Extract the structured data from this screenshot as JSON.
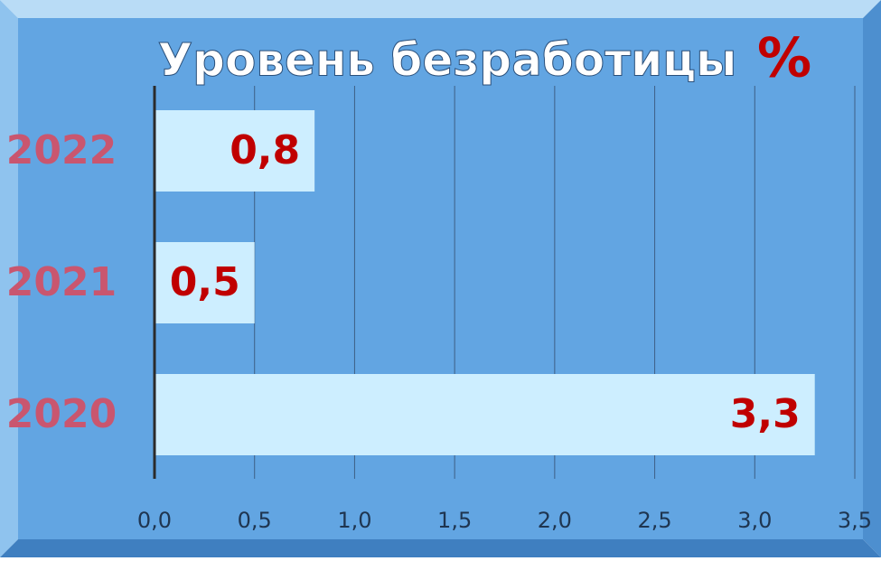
{
  "chart_data": {
    "type": "barh",
    "title": "Уровень безработицы",
    "unit": "%",
    "categories": [
      "2022",
      "2021",
      "2020"
    ],
    "values": [
      0.8,
      0.5,
      3.3
    ],
    "value_labels": [
      "0,8",
      "0,5",
      "3,3"
    ],
    "color": "#cdeeff",
    "xlim": [
      0,
      3.5
    ],
    "xticks": [
      {
        "value": 0,
        "label": "0,0"
      },
      {
        "value": 0.5,
        "label": "0,5"
      },
      {
        "value": 1,
        "label": "1,0"
      },
      {
        "value": 1.5,
        "label": "1,5"
      },
      {
        "value": 2,
        "label": "2,0"
      },
      {
        "value": 2.5,
        "label": "2,5"
      },
      {
        "value": 3,
        "label": "3,0"
      },
      {
        "value": 3.5,
        "label": "3,5"
      }
    ],
    "grid": true
  }
}
